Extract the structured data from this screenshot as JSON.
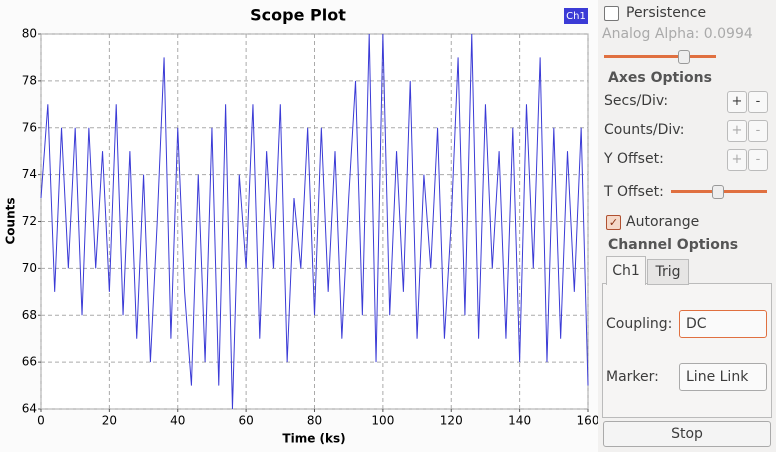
{
  "chart_data": {
    "type": "line",
    "title": "Scope Plot",
    "xlabel": "Time (ks)",
    "ylabel": "Counts",
    "x": [
      0,
      2,
      4,
      6,
      8,
      10,
      12,
      14,
      16,
      18,
      20,
      22,
      24,
      26,
      28,
      30,
      32,
      34,
      36,
      38,
      40,
      42,
      44,
      46,
      48,
      50,
      52,
      54,
      56,
      58,
      60,
      62,
      64,
      66,
      68,
      70,
      72,
      74,
      76,
      78,
      80,
      82,
      84,
      86,
      88,
      90,
      92,
      94,
      96,
      98,
      100,
      102,
      104,
      106,
      108,
      110,
      112,
      114,
      116,
      118,
      120,
      122,
      124,
      126,
      128,
      130,
      132,
      134,
      136,
      138,
      140,
      142,
      144,
      146,
      148,
      150,
      152,
      154,
      156,
      158,
      160
    ],
    "series": [
      {
        "name": "Ch1",
        "color": "#3b3bd6",
        "values": [
          73,
          77,
          69,
          76,
          70,
          76,
          68,
          76,
          70,
          75,
          69,
          77,
          68,
          75,
          67,
          74,
          66,
          72,
          79,
          67,
          76,
          69,
          65,
          74,
          66,
          76,
          65,
          77,
          64,
          74,
          70,
          77,
          67,
          75,
          70,
          77,
          66,
          73,
          70,
          76,
          68,
          76,
          69,
          75,
          67,
          73,
          78,
          68,
          80,
          66,
          80,
          68,
          75,
          69,
          78,
          67,
          74,
          70,
          76,
          67,
          72,
          79,
          68,
          80,
          67,
          77,
          70,
          75,
          67,
          76,
          66,
          77,
          70,
          79,
          66,
          76,
          67,
          75,
          69,
          76,
          65
        ]
      }
    ],
    "xlim": [
      0,
      160
    ],
    "xticks": [
      0,
      20,
      40,
      60,
      80,
      100,
      120,
      140,
      160
    ],
    "ylim": [
      64,
      80
    ],
    "yticks": [
      64,
      66,
      68,
      70,
      72,
      74,
      76,
      78,
      80
    ],
    "grid": true,
    "legend": "top-right"
  },
  "panel": {
    "persistence": "Persistence",
    "analog_alpha": "Analog Alpha: 0.0994",
    "axes_options": "Axes Options",
    "axes_rows": [
      {
        "label": "Secs/Div:",
        "plus": "+",
        "minus": "-"
      },
      {
        "label": "Counts/Div:",
        "plus": "+",
        "minus": "-"
      },
      {
        "label": "Y Offset:",
        "plus": "+",
        "minus": "-"
      }
    ],
    "t_offset": "T Offset:",
    "autorange": "Autorange",
    "channel_options": "Channel Options",
    "tabs": [
      "Ch1",
      "Trig"
    ],
    "coupling_label": "Coupling:",
    "coupling_value": "DC",
    "marker_label": "Marker:",
    "marker_value": "Line Link",
    "stop": "Stop"
  }
}
